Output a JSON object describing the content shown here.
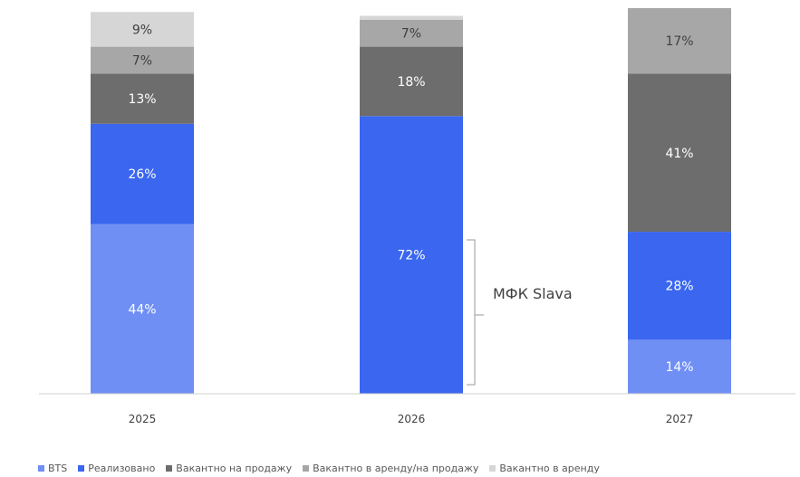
{
  "chart_data": {
    "type": "bar",
    "stacked": true,
    "categories": [
      "2025",
      "2026",
      "2027"
    ],
    "series": [
      {
        "name": "BTS",
        "color": "#6f8ff4",
        "values": [
          44,
          0,
          14
        ]
      },
      {
        "name": "Реализовано",
        "color": "#3a66f0",
        "values": [
          26,
          72,
          28
        ]
      },
      {
        "name": "Вакантно на продажу",
        "color": "#6d6d6d",
        "values": [
          13,
          18,
          41
        ]
      },
      {
        "name": "Вакантно в аренду/на продажу",
        "color": "#a7a7a7",
        "values": [
          7,
          7,
          17
        ]
      },
      {
        "name": "Вакантно в аренду",
        "color": "#d6d6d6",
        "values": [
          9,
          1,
          0
        ]
      }
    ],
    "data_labels": [
      [
        "44%",
        "",
        "14%"
      ],
      [
        "26%",
        "72%",
        "28%"
      ],
      [
        "13%",
        "18%",
        "41%"
      ],
      [
        "7%",
        "7%",
        "17%"
      ],
      [
        "9%",
        "",
        ""
      ]
    ],
    "ylim": [
      0,
      100
    ],
    "grid": false,
    "legend_position": "bottom",
    "annotation": {
      "text": "МФК Slava",
      "category": "2026",
      "series": "Реализовано"
    }
  },
  "legend_labels": [
    "BTS",
    "Реализовано",
    "Вакантно на продажу",
    "Вакантно в аренду/на продажу",
    "Вакантно в аренду"
  ],
  "tick_labels": [
    "2025",
    "2026",
    "2027"
  ],
  "annotation_text": "МФК Slava"
}
